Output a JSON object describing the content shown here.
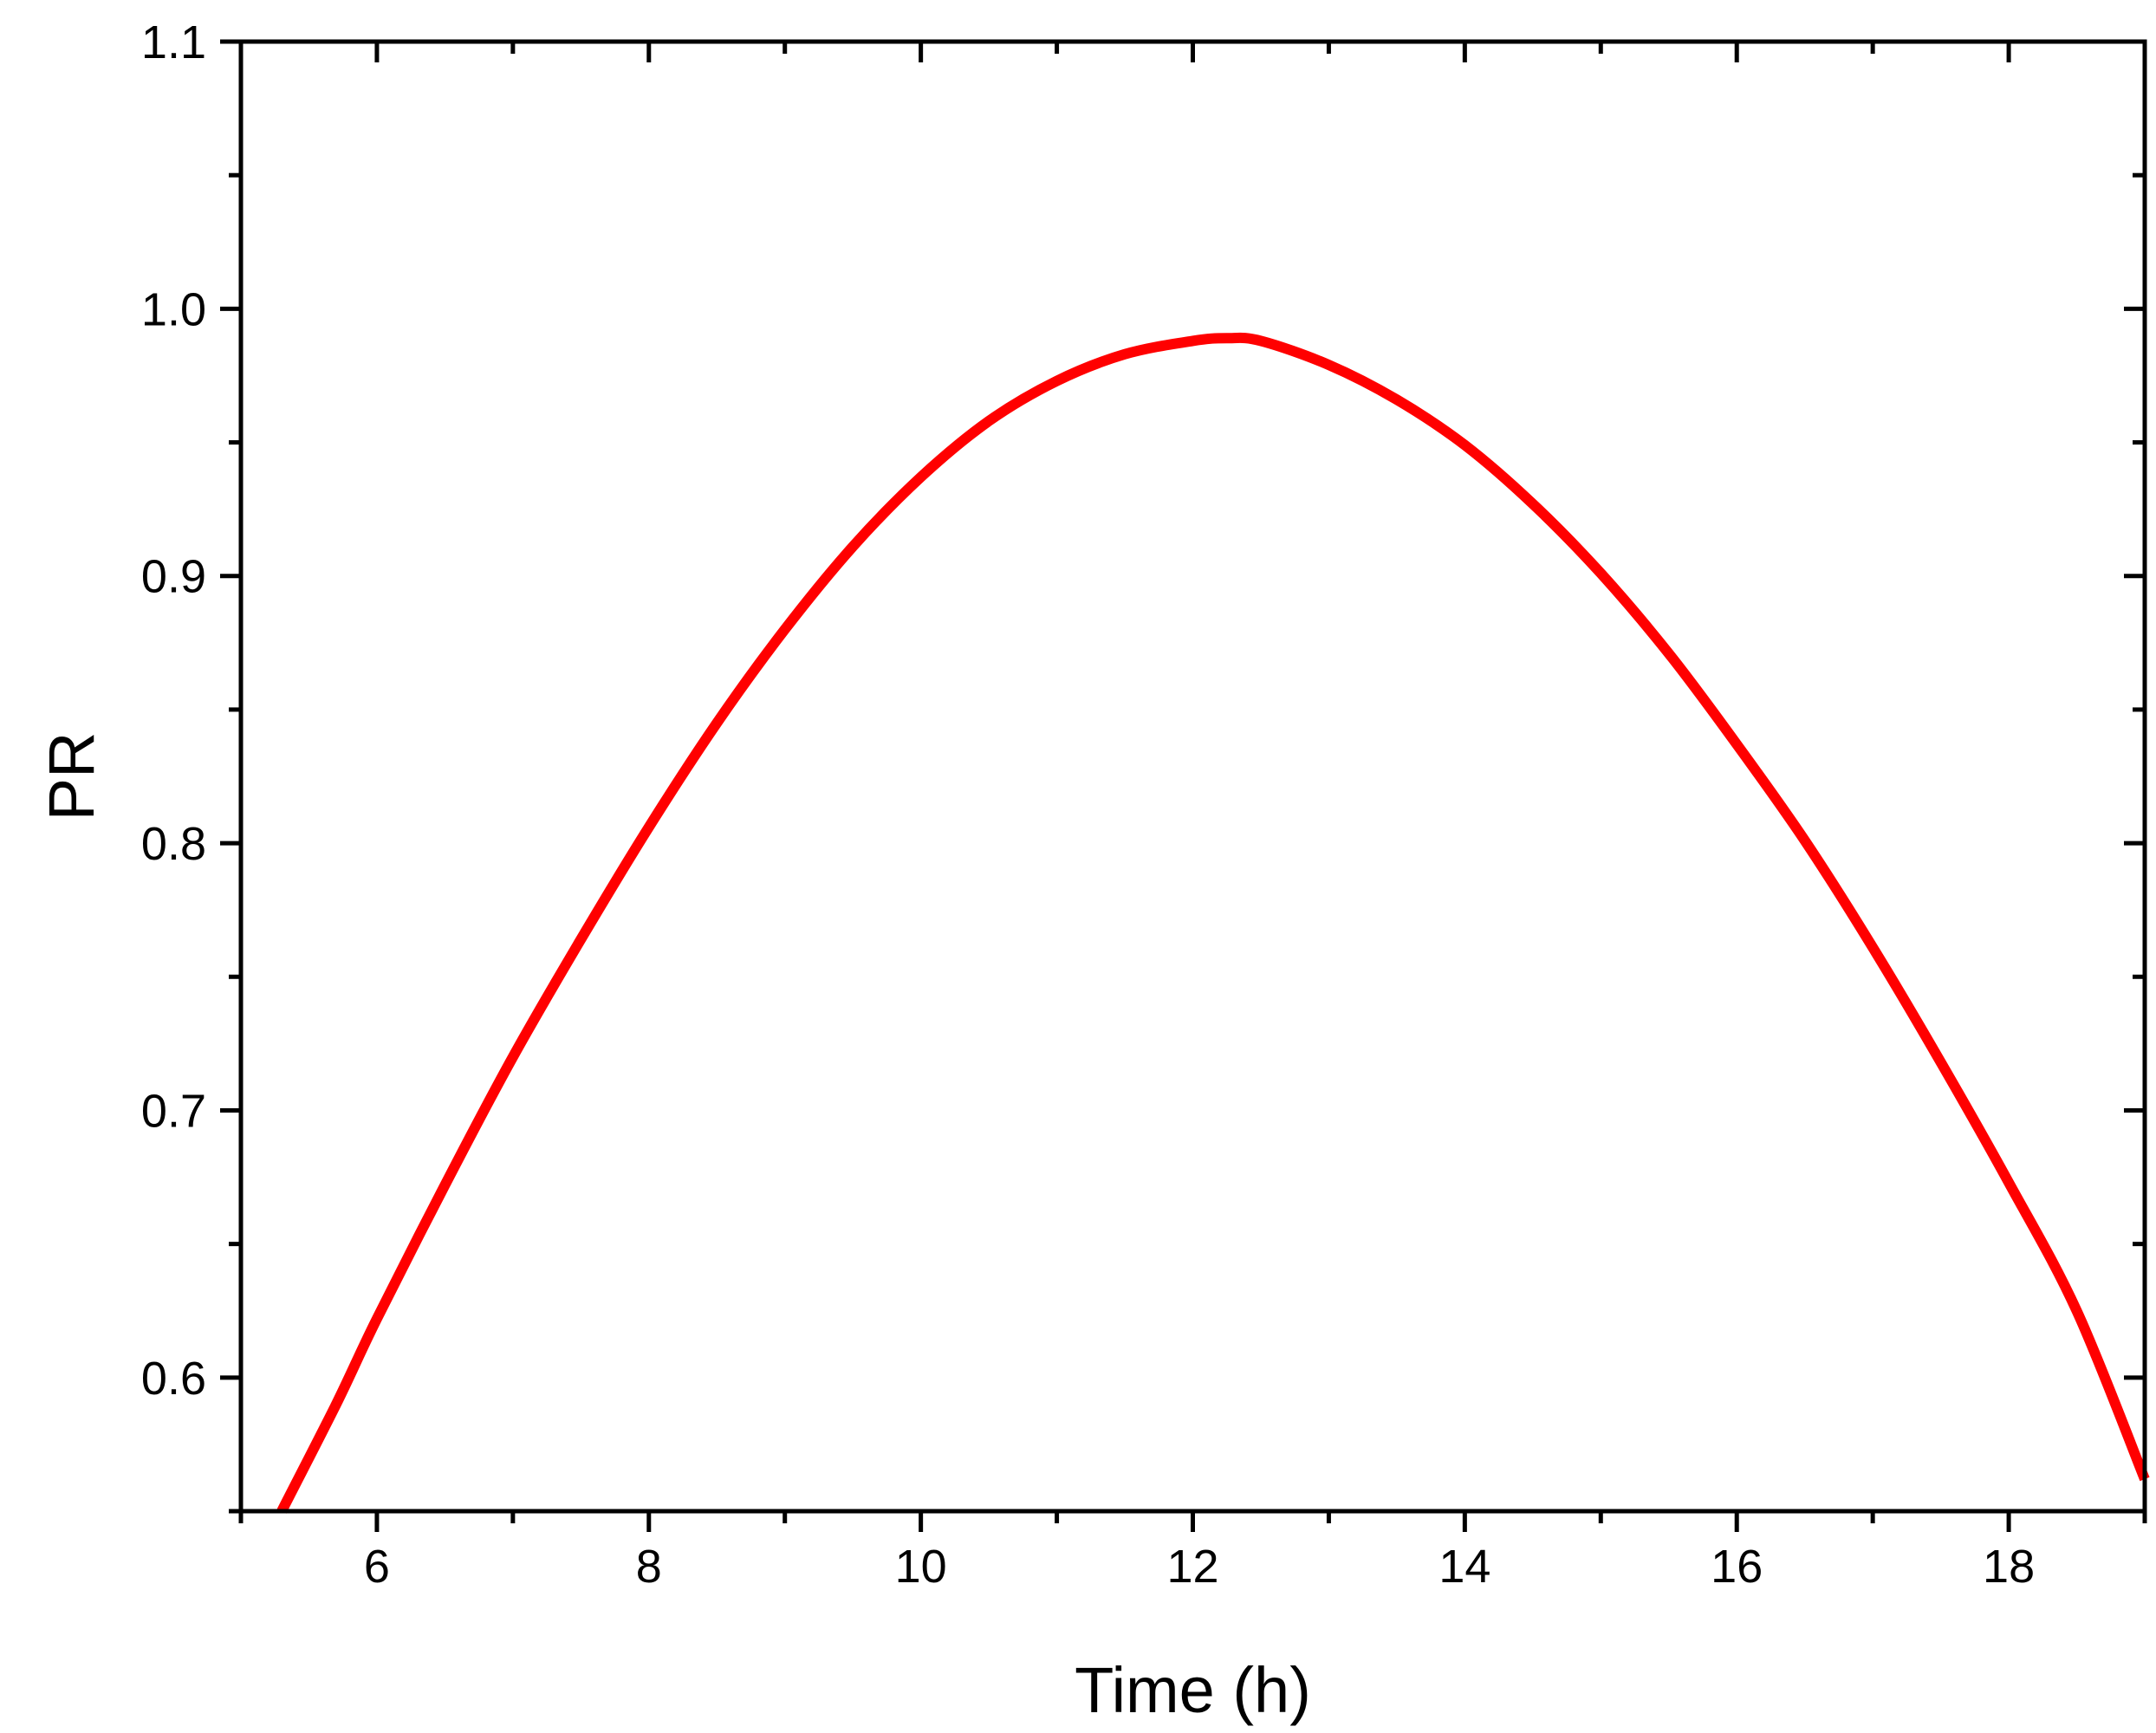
{
  "chart_data": {
    "type": "line",
    "title": "",
    "xlabel": "Time (h)",
    "ylabel": "PR",
    "xlim": [
      5,
      19
    ],
    "ylim": [
      0.55,
      1.1
    ],
    "x_ticks": [
      6,
      8,
      10,
      12,
      14,
      16,
      18
    ],
    "y_ticks": [
      0.6,
      0.7,
      0.8,
      0.9,
      1.0,
      1.1
    ],
    "x_tick_labels": [
      "6",
      "8",
      "10",
      "12",
      "14",
      "16",
      "18"
    ],
    "y_tick_labels": [
      "0.6",
      "0.7",
      "0.8",
      "0.9",
      "1.0",
      "1.1"
    ],
    "grid": false,
    "legend": "none",
    "series": [
      {
        "color": "#ff0000",
        "x": [
          5.3,
          5.7,
          6.0,
          6.5,
          7.0,
          7.5,
          8.0,
          8.5,
          9.0,
          9.5,
          10.0,
          10.5,
          11.0,
          11.5,
          12.0,
          12.25,
          12.5,
          13.0,
          13.5,
          14.0,
          14.5,
          15.0,
          15.5,
          16.0,
          16.5,
          17.0,
          17.5,
          18.0,
          18.5,
          19.0
        ],
        "y": [
          0.55,
          0.59,
          0.622,
          0.672,
          0.72,
          0.764,
          0.806,
          0.845,
          0.88,
          0.911,
          0.937,
          0.958,
          0.973,
          0.983,
          0.988,
          0.989,
          0.988,
          0.979,
          0.966,
          0.949,
          0.927,
          0.901,
          0.871,
          0.837,
          0.801,
          0.761,
          0.718,
          0.673,
          0.625,
          0.562
        ]
      }
    ]
  }
}
